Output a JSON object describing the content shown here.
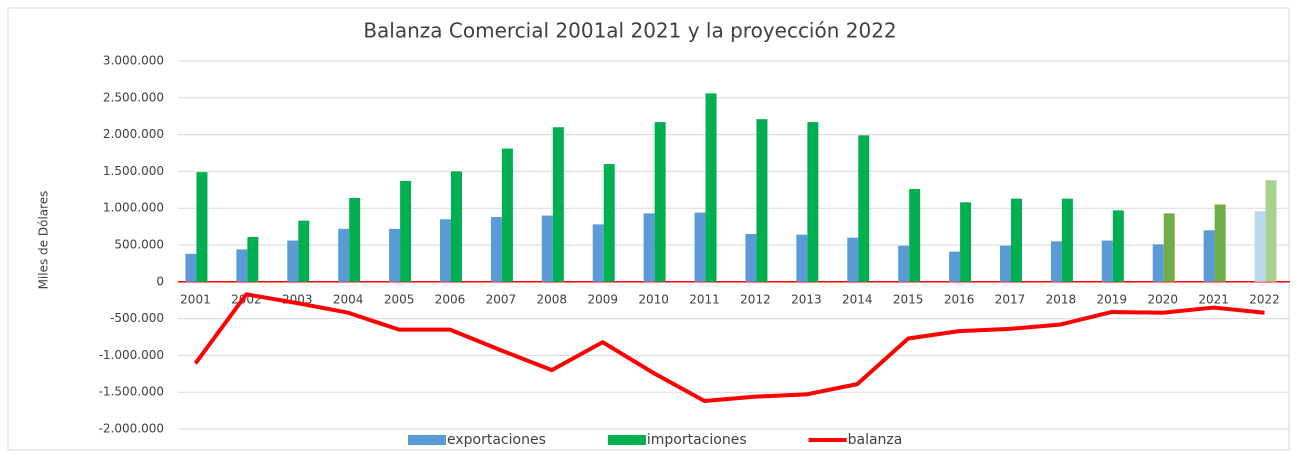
{
  "chart_data": {
    "type": "bar-line",
    "title": "Balanza Comercial 2001al 2021 y la proyección 2022",
    "y_label": "Miles de Dólares",
    "categories": [
      "2001",
      "2002",
      "2003",
      "2004",
      "2005",
      "2006",
      "2007",
      "2008",
      "2009",
      "2010",
      "2011",
      "2012",
      "2013",
      "2014",
      "2015",
      "2016",
      "2017",
      "2018",
      "2019",
      "2020",
      "2021",
      "2022"
    ],
    "series": [
      {
        "name": "exportaciones",
        "kind": "bar",
        "color": "#5b9bd5",
        "colors": [
          "#5b9bd5",
          "#5b9bd5",
          "#5b9bd5",
          "#5b9bd5",
          "#5b9bd5",
          "#5b9bd5",
          "#5b9bd5",
          "#5b9bd5",
          "#5b9bd5",
          "#5b9bd5",
          "#5b9bd5",
          "#5b9bd5",
          "#5b9bd5",
          "#5b9bd5",
          "#5b9bd5",
          "#5b9bd5",
          "#5b9bd5",
          "#5b9bd5",
          "#5b9bd5",
          "#5b9bd5",
          "#5b9bd5",
          "#bdd7ee"
        ],
        "values": [
          380000,
          440000,
          560000,
          720000,
          720000,
          850000,
          880000,
          900000,
          780000,
          930000,
          940000,
          650000,
          640000,
          600000,
          490000,
          410000,
          490000,
          550000,
          560000,
          510000,
          700000,
          960000
        ]
      },
      {
        "name": "importaciones",
        "kind": "bar",
        "color": "#00b050",
        "colors": [
          "#00b050",
          "#00b050",
          "#00b050",
          "#00b050",
          "#00b050",
          "#00b050",
          "#00b050",
          "#00b050",
          "#00b050",
          "#00b050",
          "#00b050",
          "#00b050",
          "#00b050",
          "#00b050",
          "#00b050",
          "#00b050",
          "#00b050",
          "#00b050",
          "#00b050",
          "#70ad47",
          "#70ad47",
          "#a9d18e"
        ],
        "values": [
          1490000,
          610000,
          830000,
          1140000,
          1370000,
          1500000,
          1810000,
          2100000,
          1600000,
          2170000,
          2560000,
          2210000,
          2170000,
          1990000,
          1260000,
          1080000,
          1130000,
          1130000,
          970000,
          930000,
          1050000,
          1380000
        ]
      },
      {
        "name": "balanza",
        "kind": "line",
        "color": "#ff0000",
        "values": [
          -1110000,
          -170000,
          -290000,
          -420000,
          -650000,
          -650000,
          -930000,
          -1200000,
          -820000,
          -1240000,
          -1620000,
          -1560000,
          -1530000,
          -1390000,
          -770000,
          -670000,
          -640000,
          -580000,
          -410000,
          -420000,
          -350000,
          -420000
        ]
      }
    ],
    "ylim": [
      -2000000,
      3000000
    ],
    "yticks": [
      {
        "value": -2000000,
        "label": "-2.000.000"
      },
      {
        "value": -1500000,
        "label": "-1.500.000"
      },
      {
        "value": -1000000,
        "label": "-1.000.000"
      },
      {
        "value": -500000,
        "label": "-500.000"
      },
      0,
      {
        "value": 500000,
        "label": "500.000"
      },
      {
        "value": 1000000,
        "label": "1.000.000"
      },
      {
        "value": 1500000,
        "label": "1.500.000"
      },
      {
        "value": 2000000,
        "label": "2.000.000"
      },
      {
        "value": 2500000,
        "label": "2.500.000"
      },
      {
        "value": 3000000,
        "label": "3.000.000"
      }
    ],
    "grid": true,
    "legend": "bottom"
  }
}
